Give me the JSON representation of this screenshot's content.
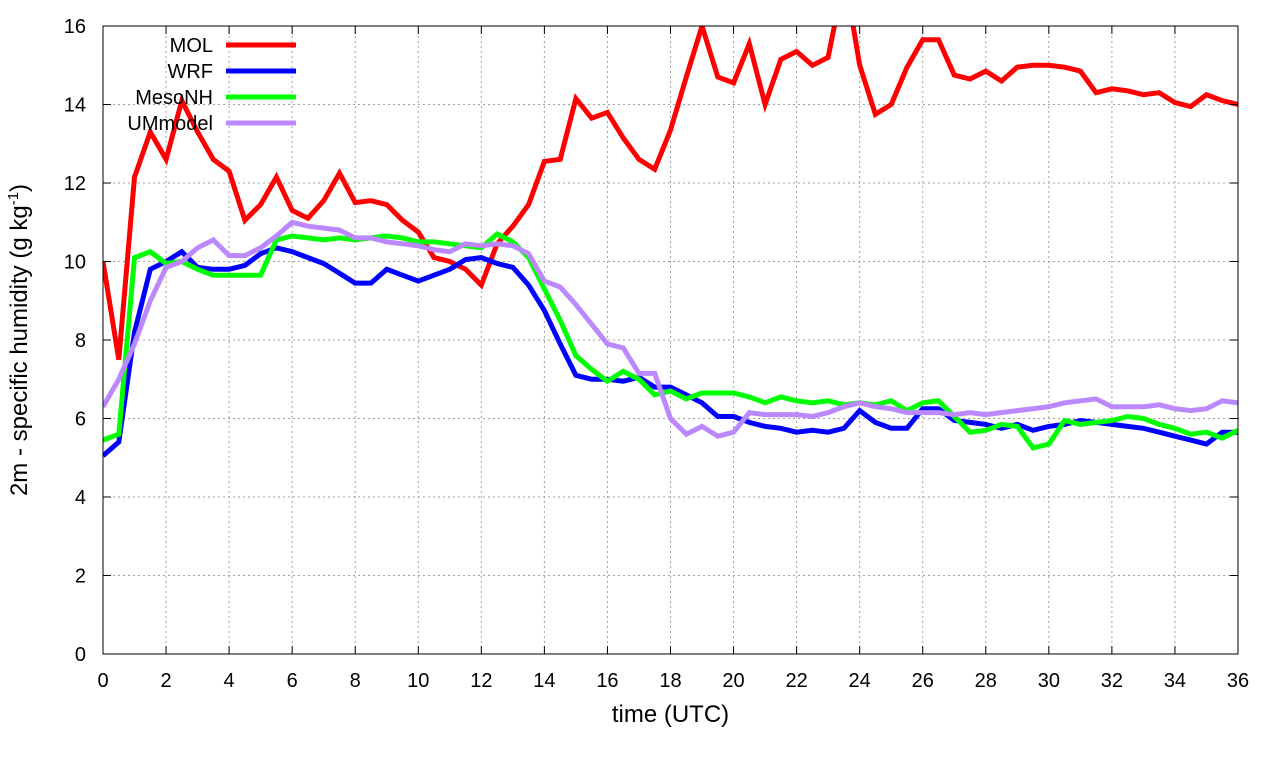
{
  "chart_data": {
    "type": "line",
    "title": "",
    "xlabel": "time (UTC)",
    "ylabel_main": "2m - specific humidity (g kg",
    "ylabel_sup": "-1",
    "ylabel_close": ")",
    "xlim": [
      0,
      36
    ],
    "ylim": [
      0,
      16
    ],
    "xticks": [
      0,
      2,
      4,
      6,
      8,
      10,
      12,
      14,
      16,
      18,
      20,
      22,
      24,
      26,
      28,
      30,
      32,
      34,
      36
    ],
    "yticks": [
      0,
      2,
      4,
      6,
      8,
      10,
      12,
      14,
      16
    ],
    "grid": true,
    "legend_position": "top-left",
    "series": [
      {
        "name": "MOL",
        "color": "#ff0000",
        "x": [
          0,
          0.5,
          1,
          1.5,
          2,
          2.5,
          3,
          3.5,
          4,
          4.5,
          5,
          5.5,
          6,
          6.5,
          7,
          7.5,
          8,
          8.5,
          9,
          9.5,
          10,
          10.5,
          11,
          11.5,
          12,
          12.5,
          13,
          13.5,
          14,
          14.5,
          15,
          15.5,
          16,
          16.5,
          17,
          17.5,
          18,
          18.5,
          19,
          19.5,
          20,
          20.5,
          21,
          21.5,
          22,
          22.5,
          23,
          23.25,
          23.75,
          24,
          24.5,
          25,
          25.5,
          26,
          26.5,
          27,
          27.5,
          28,
          28.5,
          29,
          29.5,
          30,
          30.5,
          31,
          31.5,
          32,
          32.5,
          33,
          33.5,
          34,
          34.5,
          35,
          35.5,
          36
        ],
        "values": [
          10.0,
          7.5,
          12.15,
          13.3,
          12.6,
          14.1,
          13.3,
          12.6,
          12.3,
          11.05,
          11.45,
          12.15,
          11.3,
          11.1,
          11.55,
          12.25,
          11.5,
          11.55,
          11.45,
          11.05,
          10.75,
          10.1,
          10.0,
          9.8,
          9.4,
          10.45,
          10.9,
          11.45,
          12.55,
          12.6,
          14.15,
          13.65,
          13.8,
          13.15,
          12.6,
          12.35,
          13.35,
          14.7,
          16.0,
          14.7,
          14.55,
          15.55,
          14.0,
          15.15,
          15.35,
          15.0,
          15.2,
          16.2,
          16.2,
          15.0,
          13.75,
          14.0,
          14.95,
          15.65,
          15.65,
          14.75,
          14.65,
          14.85,
          14.6,
          14.95,
          15.0,
          15.0,
          14.95,
          14.85,
          14.3,
          14.4,
          14.35,
          14.25,
          14.3,
          14.05,
          13.95,
          14.25,
          14.1,
          14.0
        ]
      },
      {
        "name": "WRF",
        "color": "#0000ff",
        "x": [
          0,
          0.5,
          1,
          1.5,
          2,
          2.5,
          3,
          3.5,
          4,
          4.5,
          5,
          5.5,
          6,
          6.5,
          7,
          7.5,
          8,
          8.5,
          9,
          9.5,
          10,
          10.5,
          11,
          11.5,
          12,
          12.5,
          13,
          13.5,
          14,
          14.5,
          15,
          15.5,
          16,
          16.5,
          17,
          17.5,
          18,
          18.5,
          19,
          19.5,
          20,
          20.5,
          21,
          21.5,
          22,
          22.5,
          23,
          23.5,
          24,
          24.5,
          25,
          25.5,
          26,
          26.5,
          27,
          27.5,
          28,
          28.5,
          29,
          29.5,
          30,
          30.5,
          31,
          31.5,
          32,
          32.5,
          33,
          33.5,
          34,
          34.5,
          35,
          35.5,
          36
        ],
        "values": [
          5.05,
          5.4,
          8.2,
          9.8,
          10.0,
          10.25,
          9.85,
          9.8,
          9.8,
          9.9,
          10.2,
          10.35,
          10.25,
          10.1,
          9.95,
          9.7,
          9.45,
          9.45,
          9.8,
          9.65,
          9.5,
          9.65,
          9.8,
          10.05,
          10.1,
          9.95,
          9.85,
          9.4,
          8.75,
          7.9,
          7.1,
          7.0,
          7.0,
          6.95,
          7.05,
          6.8,
          6.8,
          6.6,
          6.4,
          6.05,
          6.05,
          5.9,
          5.8,
          5.75,
          5.65,
          5.7,
          5.65,
          5.75,
          6.2,
          5.9,
          5.75,
          5.75,
          6.25,
          6.25,
          5.95,
          5.9,
          5.85,
          5.75,
          5.85,
          5.7,
          5.8,
          5.85,
          5.95,
          5.9,
          5.85,
          5.8,
          5.75,
          5.65,
          5.55,
          5.45,
          5.35,
          5.65,
          5.65
        ]
      },
      {
        "name": "MesoNH",
        "color": "#00ff00",
        "x": [
          0,
          0.5,
          1,
          1.5,
          2,
          2.5,
          3,
          3.5,
          4,
          4.5,
          5,
          5.5,
          6,
          6.5,
          7,
          7.5,
          8,
          8.5,
          9,
          9.5,
          10,
          10.5,
          11,
          11.5,
          12,
          12.5,
          13,
          13.5,
          14,
          14.5,
          15,
          15.5,
          16,
          16.5,
          17,
          17.5,
          18,
          18.5,
          19,
          19.5,
          20,
          20.5,
          21,
          21.5,
          22,
          22.5,
          23,
          23.5,
          24,
          24.5,
          25,
          25.5,
          26,
          26.5,
          27,
          27.5,
          28,
          28.5,
          29,
          29.5,
          30,
          30.5,
          31,
          31.5,
          32,
          32.5,
          33,
          33.5,
          34,
          34.5,
          35,
          35.5,
          36
        ],
        "values": [
          5.45,
          5.6,
          10.1,
          10.25,
          9.95,
          10.0,
          9.8,
          9.65,
          9.65,
          9.65,
          9.65,
          10.55,
          10.65,
          10.6,
          10.55,
          10.6,
          10.55,
          10.6,
          10.65,
          10.6,
          10.5,
          10.5,
          10.45,
          10.4,
          10.35,
          10.7,
          10.5,
          10.1,
          9.3,
          8.5,
          7.6,
          7.25,
          6.95,
          7.2,
          7.0,
          6.6,
          6.7,
          6.5,
          6.65,
          6.65,
          6.65,
          6.55,
          6.4,
          6.55,
          6.45,
          6.4,
          6.45,
          6.35,
          6.4,
          6.35,
          6.45,
          6.2,
          6.4,
          6.45,
          6.05,
          5.65,
          5.7,
          5.85,
          5.8,
          5.25,
          5.35,
          5.95,
          5.85,
          5.9,
          5.95,
          6.05,
          6.0,
          5.85,
          5.75,
          5.6,
          5.65,
          5.5,
          5.7
        ]
      },
      {
        "name": "UMmodel",
        "color": "#bb88ff",
        "x": [
          0,
          0.5,
          1,
          1.5,
          2,
          2.5,
          3,
          3.5,
          4,
          4.5,
          5,
          5.5,
          6,
          6.5,
          7,
          7.5,
          8,
          8.5,
          9,
          9.5,
          10,
          10.5,
          11,
          11.5,
          12,
          12.5,
          13,
          13.5,
          14,
          14.5,
          15,
          15.5,
          16,
          16.5,
          17,
          17.5,
          18,
          18.5,
          19,
          19.5,
          20,
          20.5,
          21,
          21.5,
          22,
          22.5,
          23,
          23.5,
          24,
          24.5,
          25,
          25.5,
          26,
          26.5,
          27,
          27.5,
          28,
          28.5,
          29,
          29.5,
          30,
          30.5,
          31,
          31.5,
          32,
          32.5,
          33,
          33.5,
          34,
          34.5,
          35,
          35.5,
          36
        ],
        "values": [
          6.3,
          7.0,
          7.9,
          9.0,
          9.85,
          10.0,
          10.35,
          10.55,
          10.15,
          10.15,
          10.35,
          10.65,
          11.0,
          10.9,
          10.85,
          10.8,
          10.6,
          10.6,
          10.5,
          10.45,
          10.4,
          10.3,
          10.25,
          10.45,
          10.4,
          10.45,
          10.4,
          10.2,
          9.5,
          9.35,
          8.9,
          8.4,
          7.9,
          7.8,
          7.15,
          7.15,
          6.0,
          5.6,
          5.8,
          5.55,
          5.65,
          6.15,
          6.1,
          6.1,
          6.1,
          6.05,
          6.15,
          6.3,
          6.4,
          6.3,
          6.25,
          6.15,
          6.15,
          6.15,
          6.1,
          6.15,
          6.1,
          6.15,
          6.2,
          6.25,
          6.3,
          6.4,
          6.45,
          6.5,
          6.3,
          6.3,
          6.3,
          6.35,
          6.25,
          6.2,
          6.25,
          6.45,
          6.4
        ]
      }
    ]
  }
}
